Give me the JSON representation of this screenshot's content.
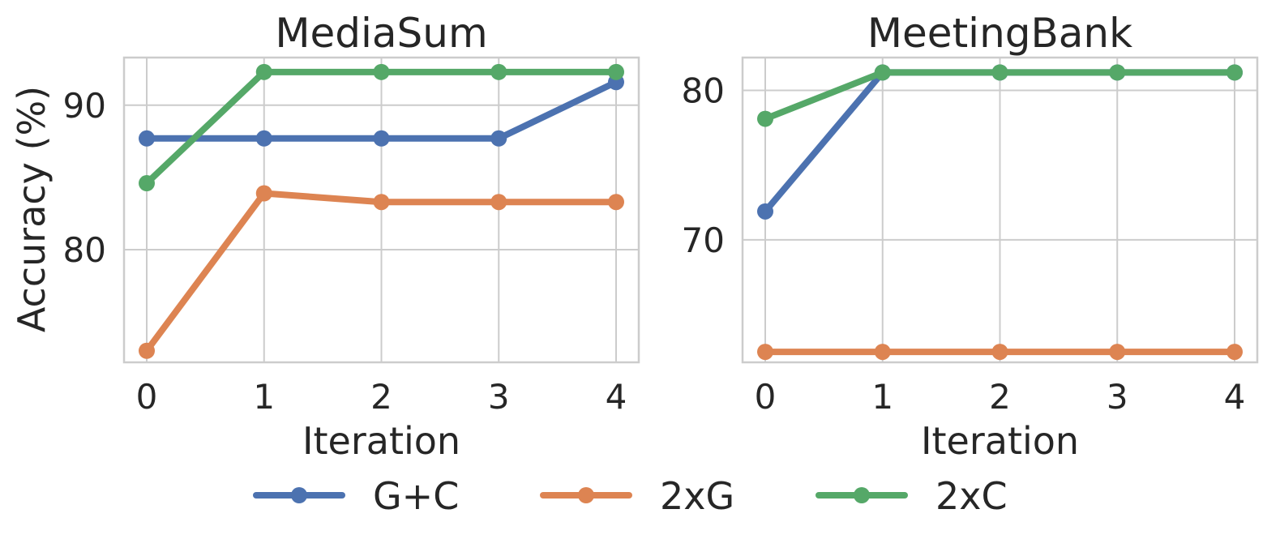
{
  "chart_data": [
    {
      "type": "line",
      "title": "MediaSum",
      "xlabel": "Iteration",
      "ylabel": "Accuracy (%)",
      "x": [
        0,
        1,
        2,
        3,
        4
      ],
      "xticks": [
        "0",
        "1",
        "2",
        "3",
        "4"
      ],
      "yticks": [
        "80",
        "90"
      ],
      "ytick_values": [
        80,
        90
      ],
      "ylim": [
        72.2,
        93.3
      ],
      "grid": true,
      "series": [
        {
          "name": "G+C",
          "color": "#4c72b0",
          "values": [
            87.7,
            87.7,
            87.7,
            87.7,
            91.6
          ]
        },
        {
          "name": "2xG",
          "color": "#dd8452",
          "values": [
            73.0,
            83.9,
            83.3,
            83.3,
            83.3
          ]
        },
        {
          "name": "2xC",
          "color": "#55a868",
          "values": [
            84.6,
            92.3,
            92.3,
            92.3,
            92.3
          ]
        }
      ]
    },
    {
      "type": "line",
      "title": "MeetingBank",
      "xlabel": "Iteration",
      "ylabel": "",
      "x": [
        0,
        1,
        2,
        3,
        4
      ],
      "xticks": [
        "0",
        "1",
        "2",
        "3",
        "4"
      ],
      "yticks": [
        "70",
        "80"
      ],
      "ytick_values": [
        70,
        80
      ],
      "ylim": [
        61.8,
        82.2
      ],
      "grid": true,
      "series": [
        {
          "name": "G+C",
          "color": "#4c72b0",
          "values": [
            71.9,
            81.2,
            81.2,
            81.2,
            81.2
          ]
        },
        {
          "name": "2xG",
          "color": "#dd8452",
          "values": [
            62.5,
            62.5,
            62.5,
            62.5,
            62.5
          ]
        },
        {
          "name": "2xC",
          "color": "#55a868",
          "values": [
            78.1,
            81.2,
            81.2,
            81.2,
            81.2
          ]
        }
      ]
    }
  ],
  "legend": {
    "position": "bottom-center",
    "entries": [
      {
        "label": "G+C",
        "color": "#4c72b0"
      },
      {
        "label": "2xG",
        "color": "#dd8452"
      },
      {
        "label": "2xC",
        "color": "#55a868"
      }
    ]
  }
}
